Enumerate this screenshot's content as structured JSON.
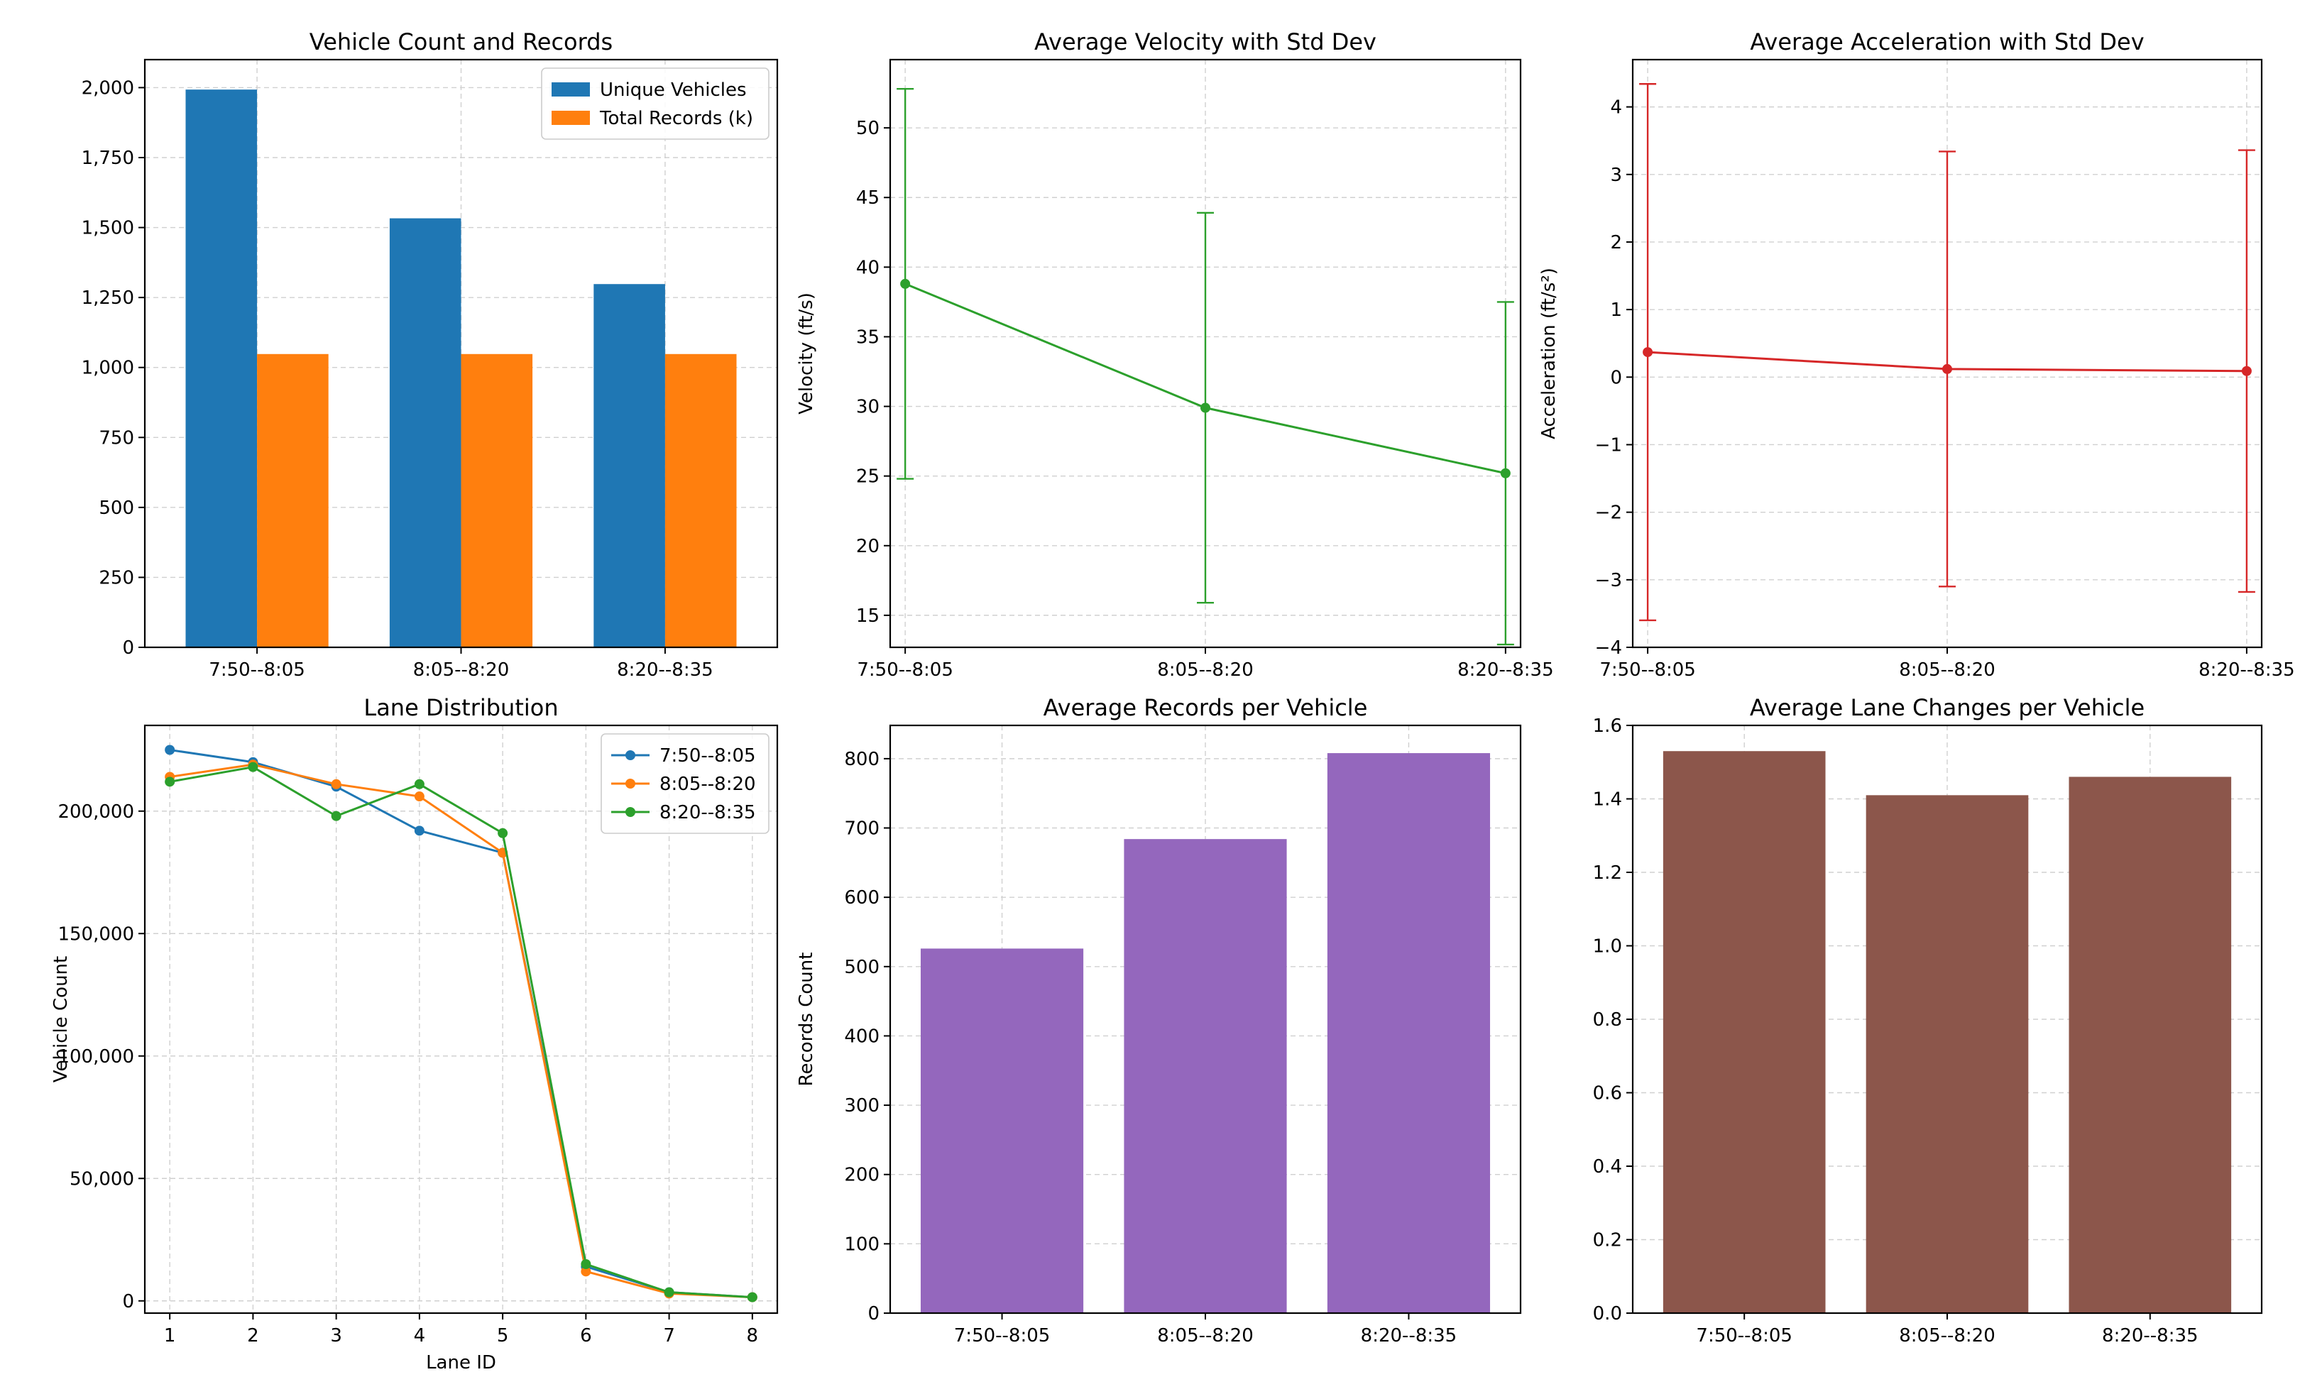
{
  "chart_data": [
    {
      "type": "bar",
      "title": "Vehicle Count and Records",
      "categories": [
        "7:50--8:05",
        "8:05--8:20",
        "8:20--8:35"
      ],
      "series": [
        {
          "name": "Unique Vehicles",
          "values": [
            1993,
            1533,
            1298
          ],
          "color": "#1f77b4"
        },
        {
          "name": "Total Records (k)",
          "values": [
            1048,
            1048,
            1048
          ],
          "color": "#ff7f0e"
        }
      ],
      "ylim": [
        0,
        2100
      ],
      "yticks": [
        0,
        250,
        500,
        750,
        1000,
        1250,
        1500,
        1750,
        2000
      ],
      "ytick_labels": [
        "0",
        "250",
        "500",
        "750",
        "1,000",
        "1,250",
        "1,500",
        "1,750",
        "2,000"
      ],
      "xlabel": "",
      "ylabel": "",
      "legend": "top-right",
      "grid": true
    },
    {
      "type": "line",
      "title": "Average Velocity with Std Dev",
      "categories": [
        "7:50--8:05",
        "8:05--8:20",
        "8:20--8:35"
      ],
      "series": [
        {
          "name": "velocity",
          "values": [
            38.8,
            29.9,
            25.2
          ],
          "err": [
            14.0,
            14.0,
            12.3
          ],
          "color": "#2ca02c"
        }
      ],
      "ylim": [
        12.7,
        54.9
      ],
      "yticks": [
        15,
        20,
        25,
        30,
        35,
        40,
        45,
        50
      ],
      "ytick_labels": [
        "15",
        "20",
        "25",
        "30",
        "35",
        "40",
        "45",
        "50"
      ],
      "xlabel": "",
      "ylabel": "Velocity (ft/s)",
      "grid": true
    },
    {
      "type": "line",
      "title": "Average Acceleration with Std Dev",
      "categories": [
        "7:50--8:05",
        "8:05--8:20",
        "8:20--8:35"
      ],
      "series": [
        {
          "name": "acceleration",
          "values": [
            0.37,
            0.12,
            0.09
          ],
          "err": [
            3.97,
            3.22,
            3.27
          ],
          "color": "#d62728"
        }
      ],
      "ylim": [
        -4.0,
        4.7
      ],
      "yticks": [
        -4,
        -3,
        -2,
        -1,
        0,
        1,
        2,
        3,
        4
      ],
      "ytick_labels": [
        "−4",
        "−3",
        "−2",
        "−1",
        "0",
        "1",
        "2",
        "3",
        "4"
      ],
      "xlabel": "",
      "ylabel": "Acceleration (ft/s²)",
      "grid": true
    },
    {
      "type": "line",
      "title": "Lane Distribution",
      "x": [
        1,
        2,
        3,
        4,
        5,
        6,
        7,
        8
      ],
      "series": [
        {
          "name": "7:50--8:05",
          "values": [
            225000,
            220000,
            210000,
            192000,
            183000,
            14000,
            3500,
            1500
          ],
          "color": "#1f77b4"
        },
        {
          "name": "8:05--8:20",
          "values": [
            214000,
            219000,
            211000,
            206000,
            183000,
            12000,
            3000,
            1500
          ],
          "color": "#ff7f0e"
        },
        {
          "name": "8:20--8:35",
          "values": [
            212000,
            218000,
            198000,
            211000,
            191000,
            15000,
            3500,
            1500
          ],
          "color": "#2ca02c"
        }
      ],
      "xlim": [
        0.7,
        8.3
      ],
      "ylim": [
        -5000,
        235000
      ],
      "xticks": [
        1,
        2,
        3,
        4,
        5,
        6,
        7,
        8
      ],
      "xtick_labels": [
        "1",
        "2",
        "3",
        "4",
        "5",
        "6",
        "7",
        "8"
      ],
      "yticks": [
        0,
        50000,
        100000,
        150000,
        200000
      ],
      "ytick_labels": [
        "0",
        "50,000",
        "100,000",
        "150,000",
        "200,000"
      ],
      "xlabel": "Lane ID",
      "ylabel": "Vehicle Count",
      "legend": "top-right",
      "grid": true
    },
    {
      "type": "bar",
      "title": "Average Records per Vehicle",
      "categories": [
        "7:50--8:05",
        "8:05--8:20",
        "8:20--8:35"
      ],
      "series": [
        {
          "name": "records",
          "values": [
            526,
            684,
            808
          ],
          "color": "#9467bd"
        }
      ],
      "ylim": [
        0,
        848
      ],
      "yticks": [
        0,
        100,
        200,
        300,
        400,
        500,
        600,
        700,
        800
      ],
      "ytick_labels": [
        "0",
        "100",
        "200",
        "300",
        "400",
        "500",
        "600",
        "700",
        "800"
      ],
      "xlabel": "",
      "ylabel": "Records Count",
      "grid": true
    },
    {
      "type": "bar",
      "title": "Average Lane Changes per Vehicle",
      "categories": [
        "7:50--8:05",
        "8:05--8:20",
        "8:20--8:35"
      ],
      "series": [
        {
          "name": "lane changes",
          "values": [
            1.53,
            1.41,
            1.46
          ],
          "color": "#8c564b"
        }
      ],
      "ylim": [
        0,
        1.6
      ],
      "yticks": [
        0.0,
        0.2,
        0.4,
        0.6,
        0.8,
        1.0,
        1.2,
        1.4,
        1.6
      ],
      "ytick_labels": [
        "0.0",
        "0.2",
        "0.4",
        "0.6",
        "0.8",
        "1.0",
        "1.2",
        "1.4",
        "1.6"
      ],
      "xlabel": "",
      "ylabel": "",
      "grid": true
    }
  ]
}
